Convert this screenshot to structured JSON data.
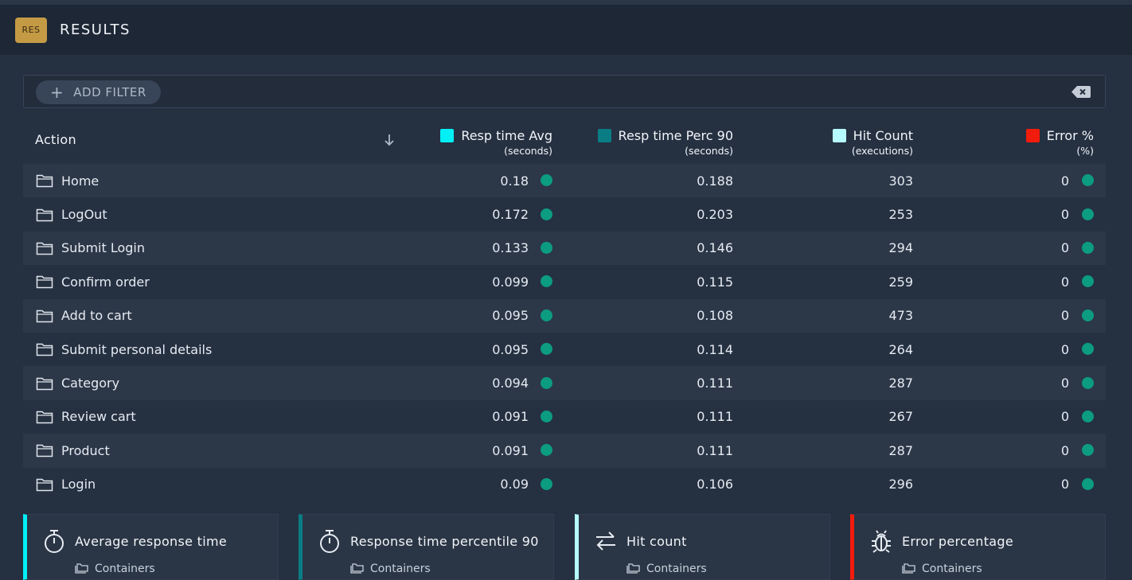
{
  "header": {
    "badge": "RES",
    "title": "RESULTS"
  },
  "filter": {
    "add_label": "ADD FILTER"
  },
  "colors": {
    "resp_avg": "#00f0f5",
    "resp_p90": "#0a7d84",
    "hit_count": "#b5fbff",
    "error": "#f21c0c",
    "status_ok": "#0c9c80"
  },
  "table": {
    "columns": {
      "action": "Action",
      "resp_avg": {
        "label": "Resp time Avg",
        "unit": "(seconds)"
      },
      "resp_p90": {
        "label": "Resp time Perc 90",
        "unit": "(seconds)"
      },
      "hit_count": {
        "label": "Hit Count",
        "unit": "(executions)"
      },
      "error": {
        "label": "Error %",
        "unit": "(%)"
      }
    },
    "rows": [
      {
        "action": "Home",
        "resp_avg": "0.18",
        "resp_p90": "0.188",
        "hit_count": "303",
        "error": "0"
      },
      {
        "action": "LogOut",
        "resp_avg": "0.172",
        "resp_p90": "0.203",
        "hit_count": "253",
        "error": "0"
      },
      {
        "action": "Submit Login",
        "resp_avg": "0.133",
        "resp_p90": "0.146",
        "hit_count": "294",
        "error": "0"
      },
      {
        "action": "Confirm order",
        "resp_avg": "0.099",
        "resp_p90": "0.115",
        "hit_count": "259",
        "error": "0"
      },
      {
        "action": "Add to cart",
        "resp_avg": "0.095",
        "resp_p90": "0.108",
        "hit_count": "473",
        "error": "0"
      },
      {
        "action": "Submit personal details",
        "resp_avg": "0.095",
        "resp_p90": "0.114",
        "hit_count": "264",
        "error": "0"
      },
      {
        "action": "Category",
        "resp_avg": "0.094",
        "resp_p90": "0.111",
        "hit_count": "287",
        "error": "0"
      },
      {
        "action": "Review cart",
        "resp_avg": "0.091",
        "resp_p90": "0.111",
        "hit_count": "267",
        "error": "0"
      },
      {
        "action": "Product",
        "resp_avg": "0.091",
        "resp_p90": "0.111",
        "hit_count": "287",
        "error": "0"
      },
      {
        "action": "Login",
        "resp_avg": "0.09",
        "resp_p90": "0.106",
        "hit_count": "296",
        "error": "0"
      }
    ]
  },
  "cards": [
    {
      "title": "Average response time",
      "subtitle": "Containers",
      "icon": "stopwatch-icon"
    },
    {
      "title": "Response time percentile 90",
      "subtitle": "Containers",
      "icon": "stopwatch-icon"
    },
    {
      "title": "Hit count",
      "subtitle": "Containers",
      "icon": "swap-arrows-icon"
    },
    {
      "title": "Error percentage",
      "subtitle": "Containers",
      "icon": "bug-icon"
    }
  ]
}
